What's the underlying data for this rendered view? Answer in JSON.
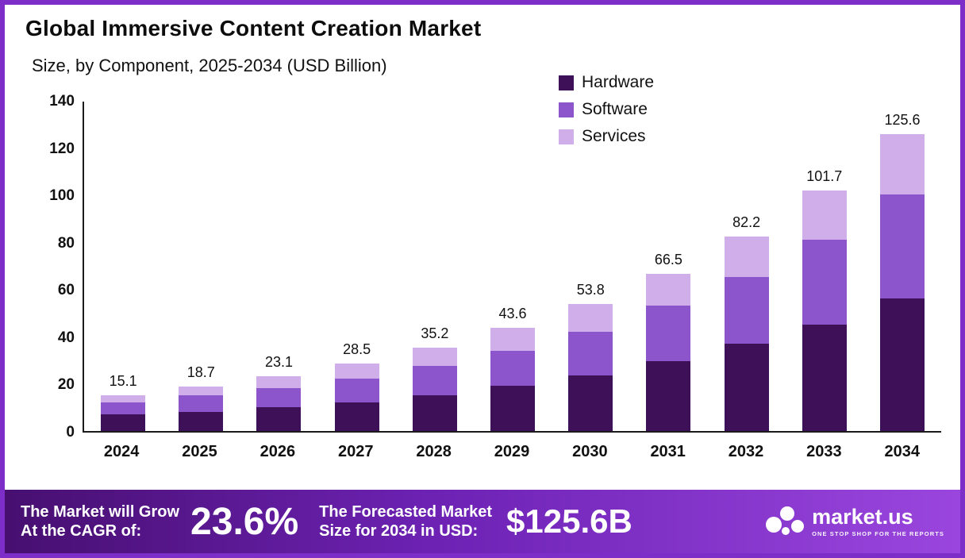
{
  "header": {
    "title": "Global Immersive Content Creation Market",
    "subtitle": "Size, by Component, 2025-2034 (USD Billion)"
  },
  "colors": {
    "hardware": "#3e1058",
    "software": "#8d55cb",
    "services": "#cfaeea",
    "frame_border": "#7e2ec8",
    "banner_gradient_start": "#470f70",
    "banner_gradient_end": "#9a46de"
  },
  "chart_data": {
    "type": "bar",
    "stacked": true,
    "title": "Global Immersive Content Creation Market",
    "subtitle": "Size, by Component, 2025-2034 (USD Billion)",
    "xlabel": "",
    "ylabel": "",
    "ylim": [
      0,
      140
    ],
    "yticks": [
      0,
      20,
      40,
      60,
      80,
      100,
      120,
      140
    ],
    "grid": false,
    "legend_position": "top-center",
    "categories": [
      "2024",
      "2025",
      "2026",
      "2027",
      "2028",
      "2029",
      "2030",
      "2031",
      "2032",
      "2033",
      "2034"
    ],
    "series": [
      {
        "name": "Hardware",
        "color": "#3e1058",
        "values": [
          7.0,
          8.2,
          10.0,
          12.2,
          15.0,
          19.0,
          23.5,
          29.5,
          37.0,
          45.0,
          56.0
        ]
      },
      {
        "name": "Software",
        "color": "#8d55cb",
        "values": [
          5.0,
          6.8,
          8.0,
          10.0,
          12.5,
          15.0,
          18.5,
          23.5,
          28.0,
          36.0,
          44.0
        ]
      },
      {
        "name": "Services",
        "color": "#cfaeea",
        "values": [
          3.1,
          3.7,
          5.1,
          6.3,
          7.7,
          9.6,
          11.8,
          13.5,
          17.2,
          20.7,
          25.6
        ]
      }
    ],
    "totals": [
      15.1,
      18.7,
      23.1,
      28.5,
      35.2,
      43.6,
      53.8,
      66.5,
      82.2,
      101.7,
      125.6
    ]
  },
  "legend": [
    {
      "label": "Hardware",
      "color": "#3e1058"
    },
    {
      "label": "Software",
      "color": "#8d55cb"
    },
    {
      "label": "Services",
      "color": "#cfaeea"
    }
  ],
  "banner": {
    "cagr_line1": "The Market will Grow",
    "cagr_line2": "At the CAGR of:",
    "cagr_value": "23.6%",
    "forecast_line1": "The Forecasted Market",
    "forecast_line2": "Size for 2034 in USD:",
    "forecast_value": "$125.6B",
    "logo_name": "market.us",
    "logo_tagline": "ONE STOP SHOP FOR THE REPORTS"
  }
}
